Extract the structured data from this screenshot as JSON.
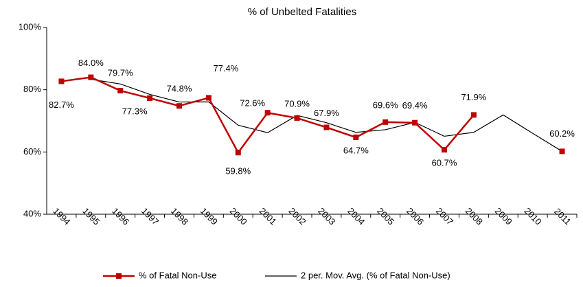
{
  "chart_data": {
    "type": "line",
    "title": "% of Unbelted Fatalities",
    "categories": [
      "1994",
      "1995",
      "1996",
      "1997",
      "1998",
      "1999",
      "2000",
      "2001",
      "2002",
      "2003",
      "2004",
      "2005",
      "2006",
      "2007",
      "2008",
      "2009",
      "2010",
      "2011"
    ],
    "series": [
      {
        "name": "% of Fatal Non-Use",
        "color": "#c00000",
        "values": [
          82.7,
          84.0,
          79.7,
          77.3,
          74.8,
          77.4,
          59.8,
          72.6,
          70.9,
          67.9,
          64.7,
          69.6,
          69.4,
          60.7,
          71.9,
          null,
          null,
          60.2
        ],
        "value_labels": [
          "82.7%",
          "84.0%",
          "79.7%",
          "77.3%",
          "74.8%",
          "77.4%",
          "59.8%",
          "72.6%",
          "70.9%",
          "67.9%",
          "64.7%",
          "69.6%",
          "69.4%",
          "60.7%",
          "71.9%",
          null,
          null,
          "60.2%"
        ]
      },
      {
        "name": "2 per. Mov. Avg. (% of Fatal Non-Use)",
        "color": "#000000",
        "values": [
          null,
          83.35,
          81.85,
          78.5,
          76.05,
          76.1,
          68.6,
          66.2,
          71.75,
          69.4,
          66.3,
          67.15,
          69.5,
          65.05,
          66.3,
          71.9,
          66,
          60.2
        ]
      }
    ],
    "ylim": [
      40,
      100
    ],
    "yticks": [
      {
        "value": 40,
        "label": "40%"
      },
      {
        "value": 60,
        "label": "60%"
      },
      {
        "value": 80,
        "label": "80%"
      },
      {
        "value": 100,
        "label": "100%"
      }
    ],
    "legend": "bottom"
  }
}
